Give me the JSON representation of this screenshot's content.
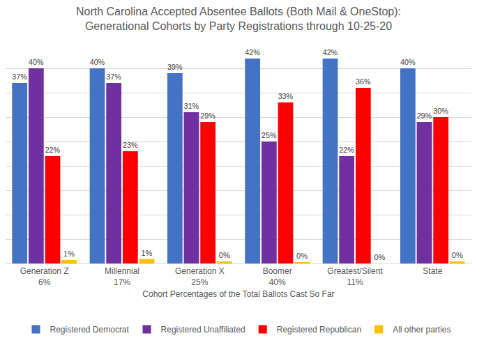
{
  "chart_data": {
    "type": "bar",
    "title": "North Carolina Accepted Absentee Ballots (Both Mail & OneStop):\nGenerational Cohorts by Party Registrations through 10-25-20",
    "x_label": "Cohort Percentages of the Total Ballots Cast So Far",
    "categories": [
      "Generation Z",
      "Millennial",
      "Generation X",
      "Boomer",
      "Greatest/Silent",
      "State"
    ],
    "cohort_shares": [
      "6%",
      "17%",
      "25%",
      "40%",
      "11%",
      null
    ],
    "series": [
      {
        "name": "Registered Democrat",
        "color": "#4472C4",
        "values": [
          37,
          40,
          39,
          42,
          42,
          40
        ],
        "value_labels": [
          "37%",
          "40%",
          "39%",
          "42%",
          "42%",
          "40%"
        ]
      },
      {
        "name": "Registered Unaffiliated",
        "color": "#7030A0",
        "values": [
          40,
          37,
          31,
          25,
          22,
          29
        ],
        "value_labels": [
          "40%",
          "37%",
          "31%",
          "25%",
          "22%",
          "29%"
        ]
      },
      {
        "name": "Registered Republican",
        "color": "#FF0000",
        "values": [
          22,
          23,
          29,
          33,
          36,
          30
        ],
        "value_labels": [
          "22%",
          "23%",
          "29%",
          "33%",
          "36%",
          "30%"
        ]
      },
      {
        "name": "All other parties",
        "color": "#FFC000",
        "values": [
          0.7,
          0.9,
          0.4,
          0.2,
          0,
          0.4
        ],
        "value_labels": [
          "1%",
          "1%",
          "0%",
          "0%",
          "0%",
          "0%"
        ]
      }
    ],
    "ylim": [
      0,
      45
    ],
    "yticks": [
      0,
      5,
      10,
      15,
      20,
      25,
      30,
      35,
      40,
      45
    ],
    "grid": true,
    "tick_labels": "x",
    "data_labels": true,
    "legend": "bottom"
  }
}
